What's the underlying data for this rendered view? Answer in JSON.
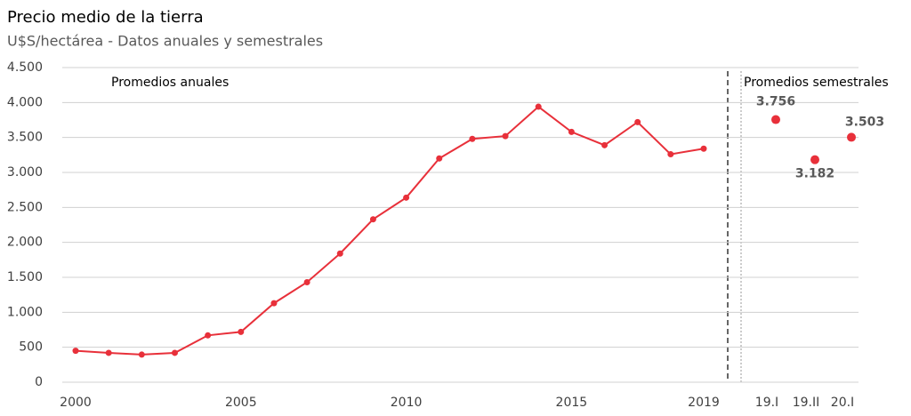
{
  "chart_data": {
    "type": "line",
    "title": "Precio medio de la tierra",
    "subtitle": "U$S/hectárea - Datos anuales y semestrales",
    "annotations": [
      "Promedios anuales",
      "Promedios semestrales"
    ],
    "categories": [
      "2000",
      null,
      null,
      null,
      null,
      "2005",
      null,
      null,
      null,
      null,
      "2010",
      null,
      null,
      null,
      null,
      "2015",
      null,
      null,
      null,
      "2019"
    ],
    "series": [
      {
        "color": "#e8303a",
        "values": [
          450,
          420,
          395,
          420,
          670,
          720,
          1130,
          1430,
          1840,
          2330,
          2640,
          3200,
          3480,
          3520,
          3940,
          3580,
          3390,
          3720,
          3260,
          3340
        ]
      }
    ],
    "semester_categories": [
      "19.I",
      "19.II",
      "20.I"
    ],
    "semester_values": [
      3756,
      3182,
      3503
    ],
    "semester_value_labels": [
      "3.756",
      "3.182",
      "3.503"
    ],
    "semester_color": "#e8303a",
    "ylim": [
      0,
      4500
    ],
    "yticks": [
      0,
      500,
      {
        "value": 1000,
        "label": "1.000"
      },
      {
        "value": 1500,
        "label": "1.500"
      },
      {
        "value": 2000,
        "label": "2.000"
      },
      {
        "value": 2500,
        "label": "2.500"
      },
      {
        "value": 3000,
        "label": "3.000"
      },
      {
        "value": 3500,
        "label": "3.500"
      },
      {
        "value": 4000,
        "label": "4.000"
      },
      {
        "value": 4500,
        "label": "4.500"
      }
    ],
    "grid": true
  }
}
